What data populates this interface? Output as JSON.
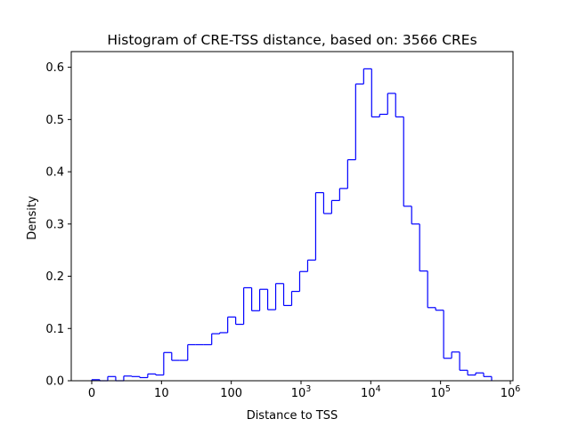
{
  "chart_data": {
    "type": "histogram",
    "title": "Histogram of CRE-TSS distance, based on: 3566 CREs",
    "xlabel": "Distance to TSS",
    "ylabel": "Density",
    "ylim": [
      0,
      0.63
    ],
    "grid": false,
    "line_color": "#0000ff",
    "x_ticks": [
      {
        "base": "0"
      },
      {
        "base": "10"
      },
      {
        "base": "100"
      },
      {
        "base": "10",
        "sup": "3"
      },
      {
        "base": "10",
        "sup": "4"
      },
      {
        "base": "10",
        "sup": "5"
      },
      {
        "base": "10",
        "sup": "6"
      }
    ],
    "y_ticks": [
      "0.0",
      "0.1",
      "0.2",
      "0.3",
      "0.4",
      "0.5",
      "0.6"
    ],
    "series": [
      {
        "values": [
          0.002,
          0.0,
          0.008,
          0.0,
          0.009,
          0.008,
          0.006,
          0.013,
          0.011,
          0.054,
          0.039,
          0.039,
          0.069,
          0.069,
          0.069,
          0.09,
          0.092,
          0.122,
          0.108,
          0.178,
          0.134,
          0.175,
          0.136,
          0.186,
          0.144,
          0.171,
          0.209,
          0.231,
          0.36,
          0.32,
          0.345,
          0.368,
          0.423,
          0.568,
          0.597,
          0.505,
          0.51,
          0.55,
          0.505,
          0.334,
          0.3,
          0.21,
          0.14,
          0.135,
          0.043,
          0.055,
          0.02,
          0.011,
          0.015,
          0.008
        ]
      }
    ]
  }
}
